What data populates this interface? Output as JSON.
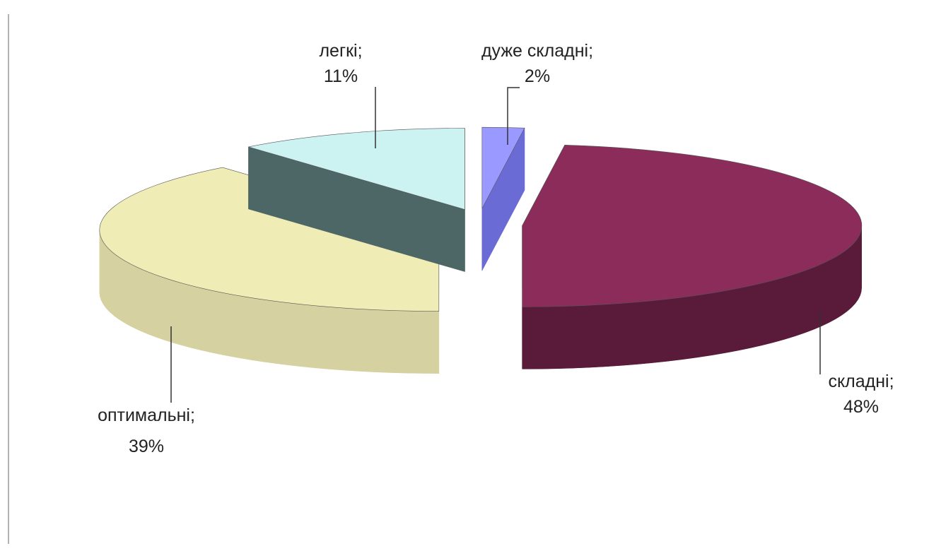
{
  "chart_data": {
    "type": "pie",
    "style": "3d-exploded",
    "title": "",
    "slices": [
      {
        "category": "дуже складні;",
        "value": 2,
        "value_label": "2%",
        "color_top": "#9999ff",
        "color_side": "#6b6bd6"
      },
      {
        "category": "складні;",
        "value": 48,
        "value_label": "48%",
        "color_top": "#8b2c5a",
        "color_side": "#5a1a3a"
      },
      {
        "category": "оптимальні;",
        "value": 39,
        "value_label": "39%",
        "color_top": "#f0ecb6",
        "color_side": "#d6d1a0"
      },
      {
        "category": "легкі;",
        "value": 11,
        "value_label": "11%",
        "color_top": "#ccf2f2",
        "color_side": "#4d6666"
      }
    ],
    "legend": "none",
    "data_labels": "category and percentage with leader lines"
  }
}
